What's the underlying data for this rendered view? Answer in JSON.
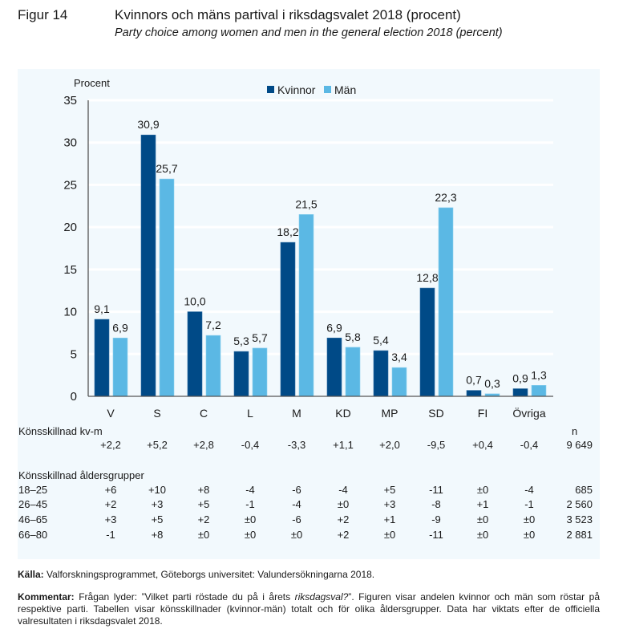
{
  "header": {
    "figure_label": "Figur 14",
    "title": "Kvinnors och mäns partival i riksdagsvalet 2018 (procent)",
    "subtitle": "Party choice among women and men in the general election 2018 (percent)"
  },
  "colors": {
    "kvinnor": "#004a87",
    "man": "#5bb8e4",
    "panel_bg": "#f2f9fd",
    "gridline": "#ffffff",
    "axis": "#555555"
  },
  "chart_data": {
    "type": "bar",
    "title": "Kvinnors och mäns partival i riksdagsvalet 2018 (procent)",
    "ylabel": "Procent",
    "xlabel": "",
    "ylim": [
      0,
      35
    ],
    "yticks": [
      0,
      5,
      10,
      15,
      20,
      25,
      30,
      35
    ],
    "grid": true,
    "legend_position": "top-center",
    "categories": [
      "V",
      "S",
      "C",
      "L",
      "M",
      "KD",
      "MP",
      "SD",
      "FI",
      "Övriga"
    ],
    "series": [
      {
        "name": "Kvinnor",
        "values": [
          9.1,
          30.9,
          10.0,
          5.3,
          18.2,
          6.9,
          5.4,
          12.8,
          0.7,
          0.9
        ],
        "labels": [
          "9,1",
          "30,9",
          "10,0",
          "5,3",
          "18,2",
          "6,9",
          "5,4",
          "12,8",
          "0,7",
          "0,9"
        ]
      },
      {
        "name": "Män",
        "values": [
          6.9,
          25.7,
          7.2,
          5.7,
          21.5,
          5.8,
          3.4,
          22.3,
          0.3,
          1.3
        ],
        "labels": [
          "6,9",
          "25,7",
          "7,2",
          "5,7",
          "21,5",
          "5,8",
          "3,4",
          "22,3",
          "0,3",
          "1,3"
        ]
      }
    ]
  },
  "table": {
    "total_header": "Könsskillnad kv-m",
    "n_header": "n",
    "total_row": {
      "values": [
        "+2,2",
        "+5,2",
        "+2,8",
        "-0,4",
        "-3,3",
        "+1,1",
        "+2,0",
        "-9,5",
        "+0,4",
        "-0,4"
      ],
      "n": "9 649"
    },
    "age_header": "Könsskillnad åldersgrupper",
    "age_rows": [
      {
        "label": "18–25",
        "values": [
          "+6",
          "+10",
          "+8",
          "-4",
          "-6",
          "-4",
          "+5",
          "-11",
          "±0",
          "-4"
        ],
        "n": "685"
      },
      {
        "label": "26–45",
        "values": [
          "+2",
          "+3",
          "+5",
          "-1",
          "-4",
          "±0",
          "+3",
          "-8",
          "+1",
          "-1"
        ],
        "n": "2 560"
      },
      {
        "label": "46–65",
        "values": [
          "+3",
          "+5",
          "+2",
          "±0",
          "-6",
          "+2",
          "+1",
          "-9",
          "±0",
          "±0"
        ],
        "n": "3 523"
      },
      {
        "label": "66–80",
        "values": [
          "-1",
          "+8",
          "±0",
          "±0",
          "±0",
          "+2",
          "±0",
          "-11",
          "±0",
          "±0"
        ],
        "n": "2 881"
      }
    ]
  },
  "footer": {
    "source_label": "Källa:",
    "source_text": " Valforskningsprogrammet, Göteborgs universitet: Valundersökningarna 2018.",
    "comment_label": "Kommentar:",
    "comment_pre": " Frågan lyder: ”Vilket parti röstade du på i årets ",
    "comment_italic": "riksdagsval?",
    "comment_post": "”. Figuren visar andelen kvinnor och män som röstar på respektive parti. Tabellen visar könsskillnader (kvinnor-män) totalt och för olika åldersgrupper. Data har viktats efter de officiella valresultaten i riksdagsvalet 2018."
  }
}
